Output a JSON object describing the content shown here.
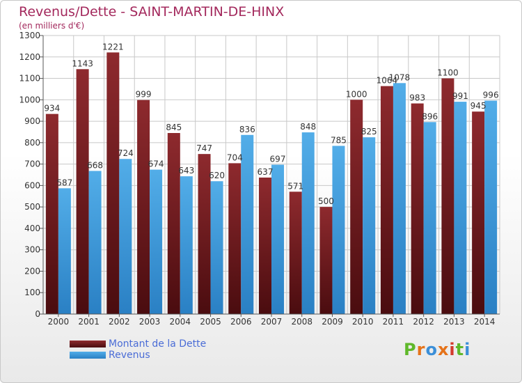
{
  "title": "Revenus/Dette - SAINT-MARTIN-DE-HINX",
  "subtitle": "(en milliers d'€)",
  "colors": {
    "dette": "#7a1e22",
    "revenus": "#3f9ee0",
    "grid": "#c8c8c8"
  },
  "chart_data": {
    "type": "bar",
    "categories": [
      "2000",
      "2001",
      "2002",
      "2003",
      "2004",
      "2005",
      "2006",
      "2007",
      "2008",
      "2009",
      "2010",
      "2011",
      "2012",
      "2013",
      "2014"
    ],
    "series": [
      {
        "name": "Montant de la Dette",
        "values": [
          934,
          1143,
          1221,
          999,
          845,
          747,
          704,
          637,
          571,
          500,
          1000,
          1064,
          983,
          1100,
          945
        ]
      },
      {
        "name": "Revenus",
        "values": [
          587,
          668,
          724,
          674,
          643,
          620,
          836,
          697,
          848,
          785,
          825,
          1078,
          896,
          991,
          996
        ]
      }
    ],
    "yticks": [
      0,
      100,
      200,
      300,
      400,
      500,
      600,
      700,
      800,
      900,
      1000,
      1100,
      1200,
      1300
    ],
    "ylim": [
      0,
      1300
    ],
    "grid": true,
    "legend_position": "bottom-left"
  },
  "legend": {
    "dette_label": "Montant de la Dette",
    "revenus_label": "Revenus"
  },
  "logo": {
    "letters": [
      "P",
      "r",
      "o",
      "x",
      "i",
      "t",
      "i"
    ],
    "colors": [
      "#5fb82b",
      "#e5731a",
      "#3b8fd8",
      "#e5731a",
      "#d33a2c",
      "#5fb82b",
      "#3b8fd8"
    ]
  }
}
